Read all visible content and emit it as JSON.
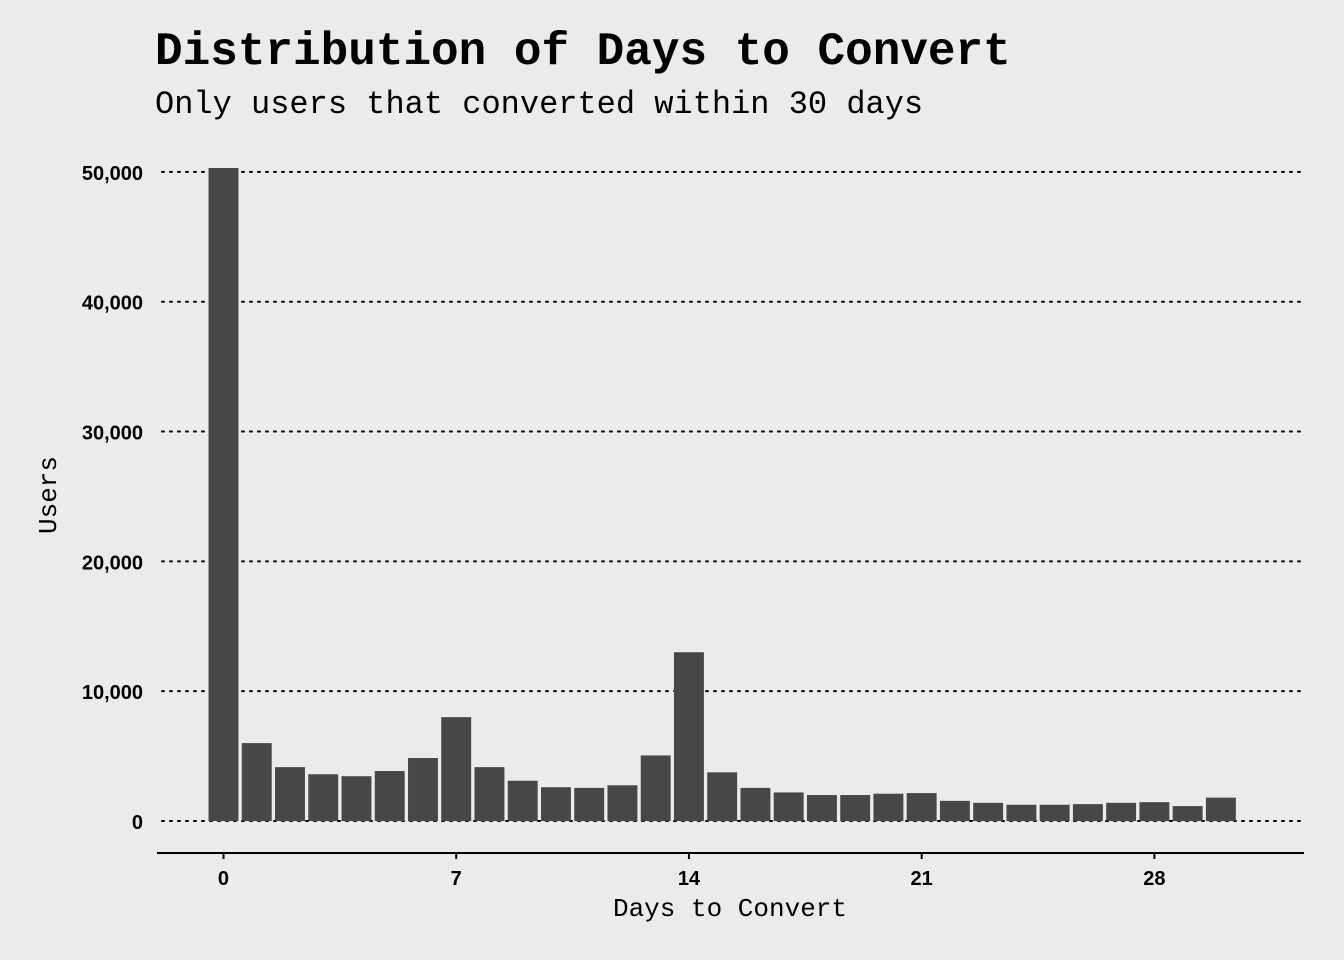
{
  "chart_data": {
    "type": "bar",
    "title": "Distribution of Days to Convert",
    "subtitle": "Only users that converted within 30 days",
    "xlabel": "Days to Convert",
    "ylabel": "Users",
    "x": [
      0,
      1,
      2,
      3,
      4,
      5,
      6,
      7,
      8,
      9,
      10,
      11,
      12,
      13,
      14,
      15,
      16,
      17,
      18,
      19,
      20,
      21,
      22,
      23,
      24,
      25,
      26,
      27,
      28,
      29,
      30
    ],
    "values": [
      50300,
      6000,
      4150,
      3600,
      3450,
      3850,
      4850,
      8000,
      4150,
      3100,
      2600,
      2550,
      2750,
      5050,
      13000,
      3750,
      2550,
      2200,
      2000,
      2000,
      2100,
      2150,
      1550,
      1400,
      1250,
      1250,
      1300,
      1400,
      1450,
      1150,
      1800
    ],
    "xlim": [
      -2,
      32.5
    ],
    "xticks": [
      0,
      7,
      14,
      21,
      28
    ],
    "ylim": [
      0,
      50300
    ],
    "yticks": [
      0,
      10000,
      20000,
      30000,
      40000,
      50000
    ],
    "ytick_labels": [
      "0",
      "10,000",
      "20,000",
      "30,000",
      "40,000",
      "50,000"
    ],
    "grid": "horizontal-dotted",
    "bar_color": "#474747",
    "background_color": "#ebebeb"
  }
}
